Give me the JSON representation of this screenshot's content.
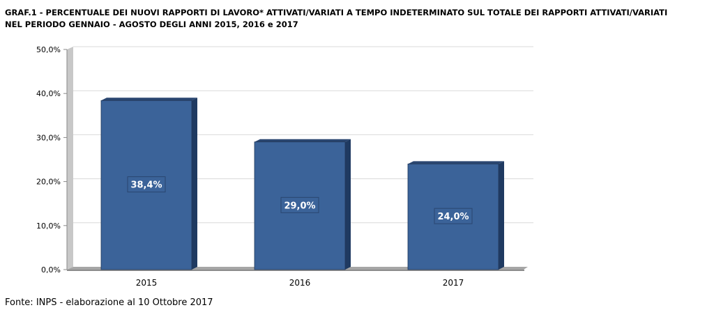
{
  "title": {
    "line1": "GRAF.1 - PERCENTUALE DEI NUOVI RAPPORTI DI LAVORO* ATTIVATI/VARIATI A TEMPO INDETERMINATO SUL TOTALE DEI RAPPORTI ATTIVATI/VARIATI",
    "line2": "NEL PERIODO GENNAIO - AGOSTO  DEGLI ANNI 2015, 2016 e 2017"
  },
  "source": "Fonte: INPS - elaborazione al 10 Ottobre 2017",
  "chart_data": {
    "type": "bar",
    "categories": [
      "2015",
      "2016",
      "2017"
    ],
    "values": [
      38.4,
      29.0,
      24.0
    ],
    "value_labels": [
      "38,4%",
      "29,0%",
      "24,0%"
    ],
    "yticks": [
      "0,0%",
      "10,0%",
      "20,0%",
      "30,0%",
      "40,0%",
      "50,0%"
    ],
    "ylim": [
      0,
      50
    ],
    "grid": true,
    "style": "3d",
    "colors": {
      "bar": "#3B6399",
      "bar_top": "#2A4670",
      "bar_side": "#1F3A61",
      "floor": "#A6A6A6",
      "wall": "#C8C8C8",
      "grid": "#D9D9D9"
    }
  }
}
